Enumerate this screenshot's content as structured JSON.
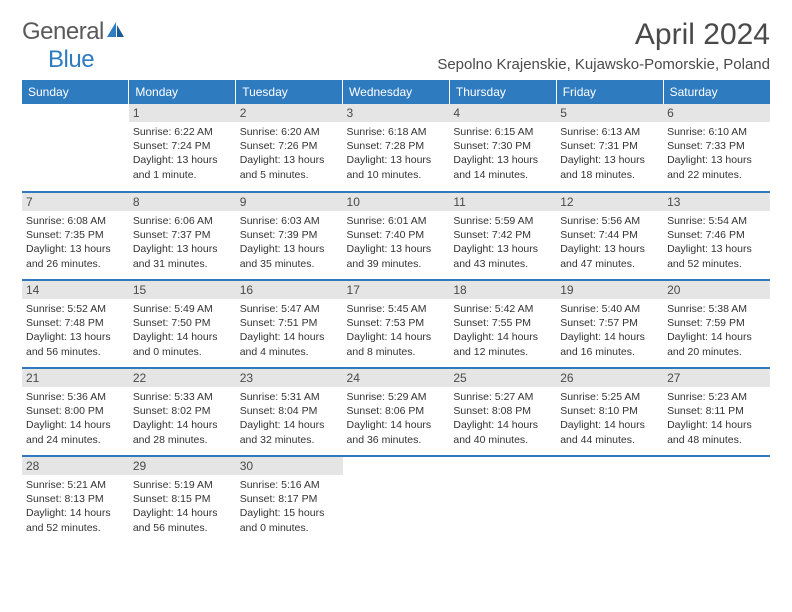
{
  "logo": {
    "text_general": "General",
    "text_blue": "Blue"
  },
  "title": "April 2024",
  "location": "Sepolno Krajenskie, Kujawsko-Pomorskie, Poland",
  "colors": {
    "header_bg": "#2f7bbf",
    "daynum_bg": "#e5e5e5",
    "text": "#333333",
    "title_text": "#4a4a4a"
  },
  "weekdays": [
    "Sunday",
    "Monday",
    "Tuesday",
    "Wednesday",
    "Thursday",
    "Friday",
    "Saturday"
  ],
  "weeks": [
    [
      null,
      {
        "n": "1",
        "sr": "Sunrise: 6:22 AM",
        "ss": "Sunset: 7:24 PM",
        "dl1": "Daylight: 13 hours",
        "dl2": "and 1 minute."
      },
      {
        "n": "2",
        "sr": "Sunrise: 6:20 AM",
        "ss": "Sunset: 7:26 PM",
        "dl1": "Daylight: 13 hours",
        "dl2": "and 5 minutes."
      },
      {
        "n": "3",
        "sr": "Sunrise: 6:18 AM",
        "ss": "Sunset: 7:28 PM",
        "dl1": "Daylight: 13 hours",
        "dl2": "and 10 minutes."
      },
      {
        "n": "4",
        "sr": "Sunrise: 6:15 AM",
        "ss": "Sunset: 7:30 PM",
        "dl1": "Daylight: 13 hours",
        "dl2": "and 14 minutes."
      },
      {
        "n": "5",
        "sr": "Sunrise: 6:13 AM",
        "ss": "Sunset: 7:31 PM",
        "dl1": "Daylight: 13 hours",
        "dl2": "and 18 minutes."
      },
      {
        "n": "6",
        "sr": "Sunrise: 6:10 AM",
        "ss": "Sunset: 7:33 PM",
        "dl1": "Daylight: 13 hours",
        "dl2": "and 22 minutes."
      }
    ],
    [
      {
        "n": "7",
        "sr": "Sunrise: 6:08 AM",
        "ss": "Sunset: 7:35 PM",
        "dl1": "Daylight: 13 hours",
        "dl2": "and 26 minutes."
      },
      {
        "n": "8",
        "sr": "Sunrise: 6:06 AM",
        "ss": "Sunset: 7:37 PM",
        "dl1": "Daylight: 13 hours",
        "dl2": "and 31 minutes."
      },
      {
        "n": "9",
        "sr": "Sunrise: 6:03 AM",
        "ss": "Sunset: 7:39 PM",
        "dl1": "Daylight: 13 hours",
        "dl2": "and 35 minutes."
      },
      {
        "n": "10",
        "sr": "Sunrise: 6:01 AM",
        "ss": "Sunset: 7:40 PM",
        "dl1": "Daylight: 13 hours",
        "dl2": "and 39 minutes."
      },
      {
        "n": "11",
        "sr": "Sunrise: 5:59 AM",
        "ss": "Sunset: 7:42 PM",
        "dl1": "Daylight: 13 hours",
        "dl2": "and 43 minutes."
      },
      {
        "n": "12",
        "sr": "Sunrise: 5:56 AM",
        "ss": "Sunset: 7:44 PM",
        "dl1": "Daylight: 13 hours",
        "dl2": "and 47 minutes."
      },
      {
        "n": "13",
        "sr": "Sunrise: 5:54 AM",
        "ss": "Sunset: 7:46 PM",
        "dl1": "Daylight: 13 hours",
        "dl2": "and 52 minutes."
      }
    ],
    [
      {
        "n": "14",
        "sr": "Sunrise: 5:52 AM",
        "ss": "Sunset: 7:48 PM",
        "dl1": "Daylight: 13 hours",
        "dl2": "and 56 minutes."
      },
      {
        "n": "15",
        "sr": "Sunrise: 5:49 AM",
        "ss": "Sunset: 7:50 PM",
        "dl1": "Daylight: 14 hours",
        "dl2": "and 0 minutes."
      },
      {
        "n": "16",
        "sr": "Sunrise: 5:47 AM",
        "ss": "Sunset: 7:51 PM",
        "dl1": "Daylight: 14 hours",
        "dl2": "and 4 minutes."
      },
      {
        "n": "17",
        "sr": "Sunrise: 5:45 AM",
        "ss": "Sunset: 7:53 PM",
        "dl1": "Daylight: 14 hours",
        "dl2": "and 8 minutes."
      },
      {
        "n": "18",
        "sr": "Sunrise: 5:42 AM",
        "ss": "Sunset: 7:55 PM",
        "dl1": "Daylight: 14 hours",
        "dl2": "and 12 minutes."
      },
      {
        "n": "19",
        "sr": "Sunrise: 5:40 AM",
        "ss": "Sunset: 7:57 PM",
        "dl1": "Daylight: 14 hours",
        "dl2": "and 16 minutes."
      },
      {
        "n": "20",
        "sr": "Sunrise: 5:38 AM",
        "ss": "Sunset: 7:59 PM",
        "dl1": "Daylight: 14 hours",
        "dl2": "and 20 minutes."
      }
    ],
    [
      {
        "n": "21",
        "sr": "Sunrise: 5:36 AM",
        "ss": "Sunset: 8:00 PM",
        "dl1": "Daylight: 14 hours",
        "dl2": "and 24 minutes."
      },
      {
        "n": "22",
        "sr": "Sunrise: 5:33 AM",
        "ss": "Sunset: 8:02 PM",
        "dl1": "Daylight: 14 hours",
        "dl2": "and 28 minutes."
      },
      {
        "n": "23",
        "sr": "Sunrise: 5:31 AM",
        "ss": "Sunset: 8:04 PM",
        "dl1": "Daylight: 14 hours",
        "dl2": "and 32 minutes."
      },
      {
        "n": "24",
        "sr": "Sunrise: 5:29 AM",
        "ss": "Sunset: 8:06 PM",
        "dl1": "Daylight: 14 hours",
        "dl2": "and 36 minutes."
      },
      {
        "n": "25",
        "sr": "Sunrise: 5:27 AM",
        "ss": "Sunset: 8:08 PM",
        "dl1": "Daylight: 14 hours",
        "dl2": "and 40 minutes."
      },
      {
        "n": "26",
        "sr": "Sunrise: 5:25 AM",
        "ss": "Sunset: 8:10 PM",
        "dl1": "Daylight: 14 hours",
        "dl2": "and 44 minutes."
      },
      {
        "n": "27",
        "sr": "Sunrise: 5:23 AM",
        "ss": "Sunset: 8:11 PM",
        "dl1": "Daylight: 14 hours",
        "dl2": "and 48 minutes."
      }
    ],
    [
      {
        "n": "28",
        "sr": "Sunrise: 5:21 AM",
        "ss": "Sunset: 8:13 PM",
        "dl1": "Daylight: 14 hours",
        "dl2": "and 52 minutes."
      },
      {
        "n": "29",
        "sr": "Sunrise: 5:19 AM",
        "ss": "Sunset: 8:15 PM",
        "dl1": "Daylight: 14 hours",
        "dl2": "and 56 minutes."
      },
      {
        "n": "30",
        "sr": "Sunrise: 5:16 AM",
        "ss": "Sunset: 8:17 PM",
        "dl1": "Daylight: 15 hours",
        "dl2": "and 0 minutes."
      },
      null,
      null,
      null,
      null
    ]
  ]
}
